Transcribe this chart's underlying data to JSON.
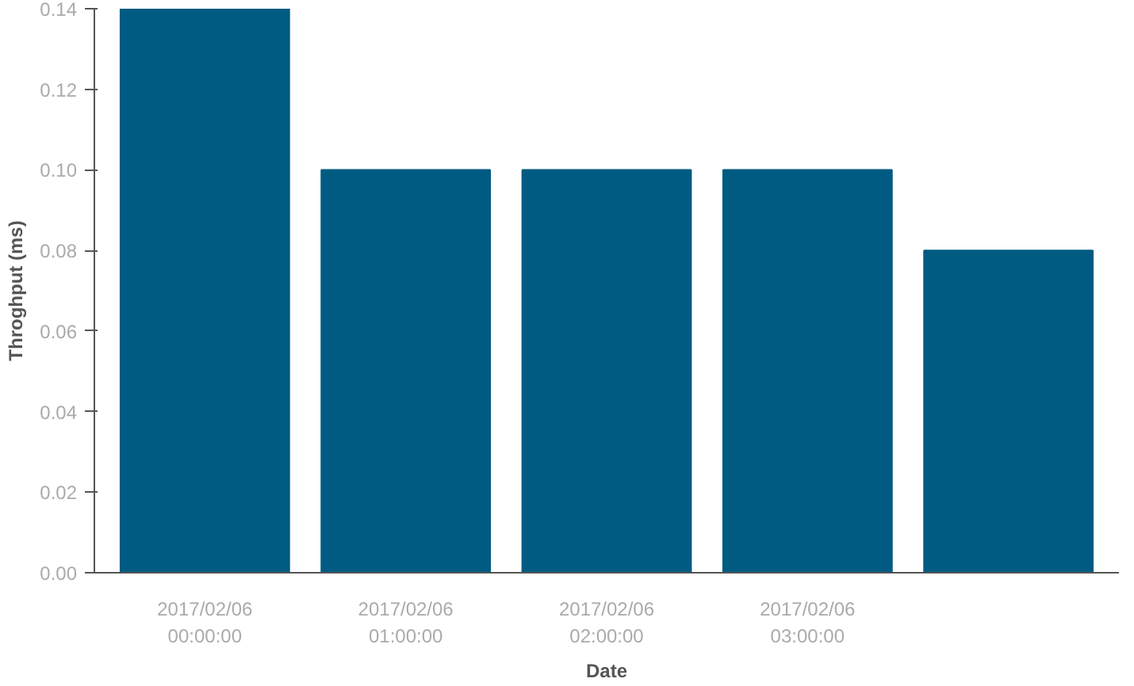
{
  "chart_data": {
    "type": "bar",
    "xlabel": "Date",
    "ylabel": "Throghput (ms)",
    "categories": [
      "2017/02/06\n00:00:00",
      "2017/02/06\n01:00:00",
      "2017/02/06\n02:00:00",
      "2017/02/06\n03:00:00",
      null
    ],
    "values": [
      0.14,
      0.1,
      0.1,
      0.1,
      0.08
    ],
    "color": "#005b82",
    "ylim": [
      0,
      0.14
    ],
    "yticks": [
      {
        "value": 0,
        "label": "0.00"
      },
      {
        "value": 0.02,
        "label": "0.02"
      },
      {
        "value": 0.04,
        "label": "0.04"
      },
      {
        "value": 0.06,
        "label": "0.06"
      },
      {
        "value": 0.08,
        "label": "0.08"
      },
      {
        "value": 0.1,
        "label": "0.10"
      },
      {
        "value": 0.12,
        "label": "0.12"
      },
      {
        "value": 0.14,
        "label": "0.14"
      }
    ],
    "grid": false
  }
}
